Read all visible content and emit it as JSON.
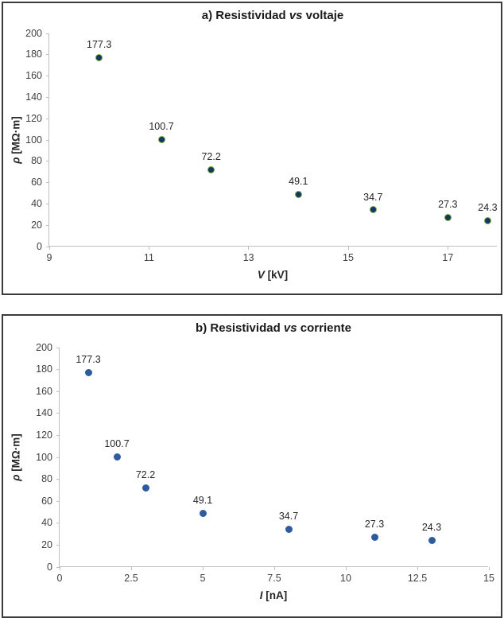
{
  "page": {
    "background": "#ffffff",
    "panel_border_color": "#3b3b3b"
  },
  "chart_data": [
    {
      "type": "scatter",
      "title": "a) Resistividad vs voltaje",
      "title_parts": {
        "prefix": "a) Resistividad ",
        "italic": "vs",
        "suffix": " voltaje"
      },
      "xlabel": "V [kV]",
      "xlabel_parts": {
        "italic": "V",
        "rest": " [kV]"
      },
      "ylabel": "ρ [MΩ·m]",
      "ylabel_parts": {
        "italic": "ρ",
        "rest": " [MΩ·m]"
      },
      "xlim": [
        9,
        18
      ],
      "ylim": [
        0,
        200
      ],
      "x_ticks": [
        "9",
        "11",
        "13",
        "15",
        "17"
      ],
      "y_ticks": [
        "0",
        "20",
        "40",
        "60",
        "80",
        "100",
        "120",
        "140",
        "160",
        "180",
        "200"
      ],
      "grid": false,
      "legend": "none",
      "points": [
        {
          "x": 10.0,
          "y": 177.3,
          "label": "177.3"
        },
        {
          "x": 11.25,
          "y": 100.7,
          "label": "100.7"
        },
        {
          "x": 12.25,
          "y": 72.2,
          "label": "72.2"
        },
        {
          "x": 14.0,
          "y": 49.1,
          "label": "49.1"
        },
        {
          "x": 15.5,
          "y": 34.7,
          "label": "34.7"
        },
        {
          "x": 17.0,
          "y": 27.3,
          "label": "27.3"
        },
        {
          "x": 17.8,
          "y": 24.3,
          "label": "24.3"
        }
      ],
      "style": {
        "marker_fill": "#17375e",
        "marker_edge": "#70ad47",
        "axis_color": "#bfbfbf",
        "text_color": "#404040"
      }
    },
    {
      "type": "scatter",
      "title": "b) Resistividad vs corriente",
      "title_parts": {
        "prefix": "b) Resistividad ",
        "italic": "vs",
        "suffix": " corriente"
      },
      "xlabel": "I [nA]",
      "xlabel_parts": {
        "italic": "I",
        "rest": " [nA]"
      },
      "ylabel": "ρ [MΩ·m]",
      "ylabel_parts": {
        "italic": "ρ",
        "rest": " [MΩ·m]"
      },
      "xlim": [
        0,
        15
      ],
      "ylim": [
        0,
        200
      ],
      "x_ticks": [
        "0",
        "2.5",
        "5",
        "7.5",
        "10",
        "12.5",
        "15"
      ],
      "y_ticks": [
        "0",
        "20",
        "40",
        "60",
        "80",
        "100",
        "120",
        "140",
        "160",
        "180",
        "200"
      ],
      "grid": false,
      "legend": "none",
      "points": [
        {
          "x": 1.0,
          "y": 177.3,
          "label": "177.3"
        },
        {
          "x": 2.0,
          "y": 100.7,
          "label": "100.7"
        },
        {
          "x": 3.0,
          "y": 72.2,
          "label": "72.2"
        },
        {
          "x": 5.0,
          "y": 49.1,
          "label": "49.1"
        },
        {
          "x": 8.0,
          "y": 34.7,
          "label": "34.7"
        },
        {
          "x": 11.0,
          "y": 27.3,
          "label": "27.3"
        },
        {
          "x": 13.0,
          "y": 24.3,
          "label": "24.3"
        }
      ],
      "style": {
        "marker_fill": "#2e5b9f",
        "marker_edge": "#2e5b9f",
        "axis_color": "#bfbfbf",
        "text_color": "#404040"
      }
    }
  ]
}
